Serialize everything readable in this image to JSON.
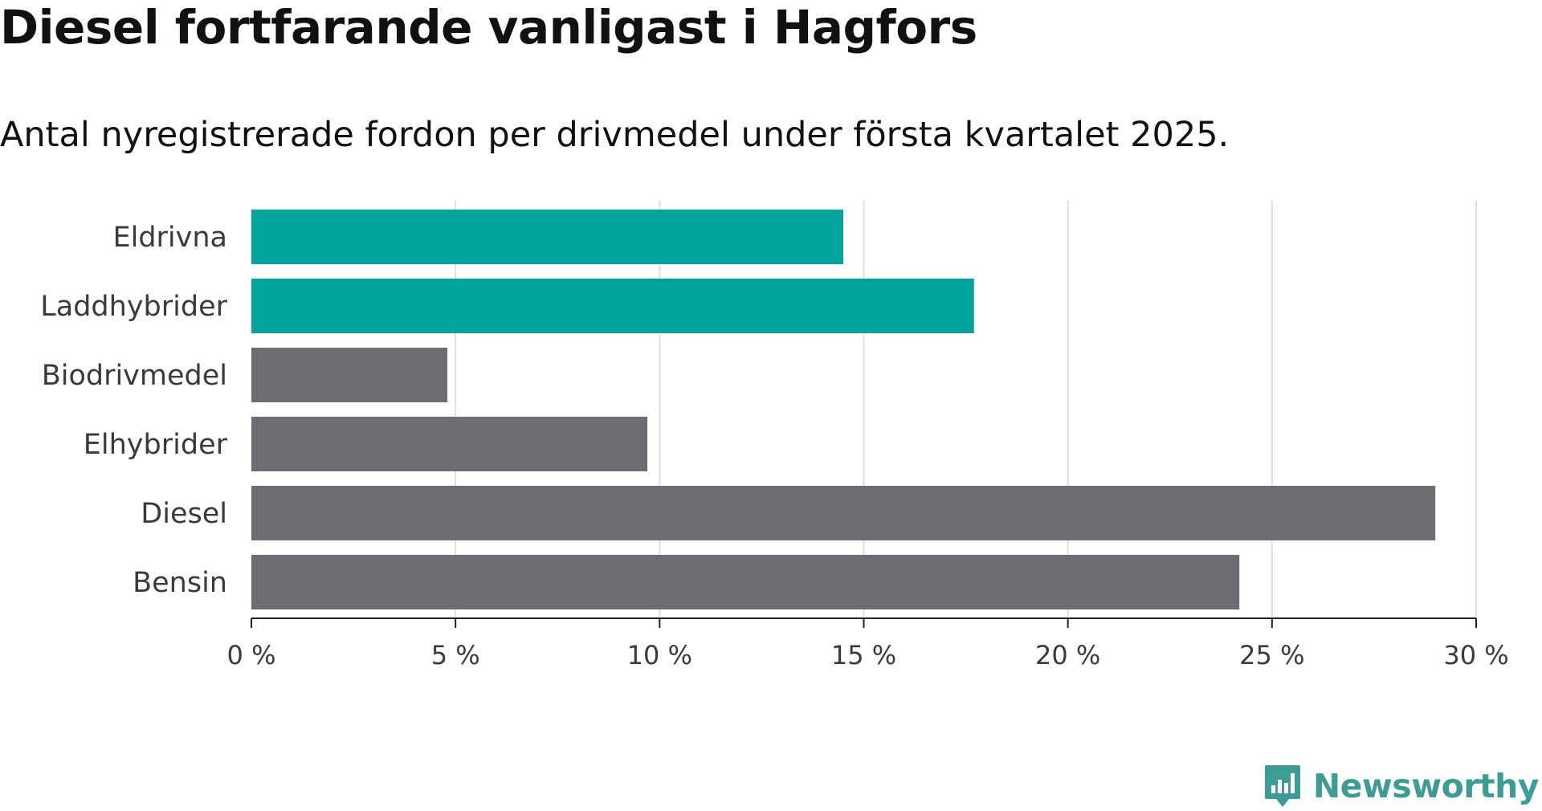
{
  "title": "Diesel fortfarande vanligast i Hagfors",
  "subtitle": "Antal nyregistrerade fordon per drivmedel under första kvartalet 2025.",
  "brand": {
    "name": "Newsworthy",
    "icon": "newsworthy-logo-icon",
    "color": "#3d9c93"
  },
  "colors": {
    "highlight": "#00a49a",
    "default": "#6d6c72",
    "grid": "#dedede",
    "axis": "#222222"
  },
  "chart_data": {
    "type": "bar",
    "orientation": "horizontal",
    "categories": [
      "Eldrivna",
      "Laddhybrider",
      "Biodrivmedel",
      "Elhybrider",
      "Diesel",
      "Bensin"
    ],
    "values": [
      14.5,
      17.7,
      4.8,
      9.7,
      29.0,
      24.2
    ],
    "highlighted": [
      "Eldrivna",
      "Laddhybrider"
    ],
    "xlim": [
      0,
      30
    ],
    "xticks": [
      0,
      5,
      10,
      15,
      20,
      25,
      30
    ],
    "xtick_labels": [
      "0 %",
      "5 %",
      "10 %",
      "15 %",
      "20 %",
      "25 %",
      "30 %"
    ],
    "unit": "%",
    "grid": "vertical",
    "legend": "none"
  }
}
